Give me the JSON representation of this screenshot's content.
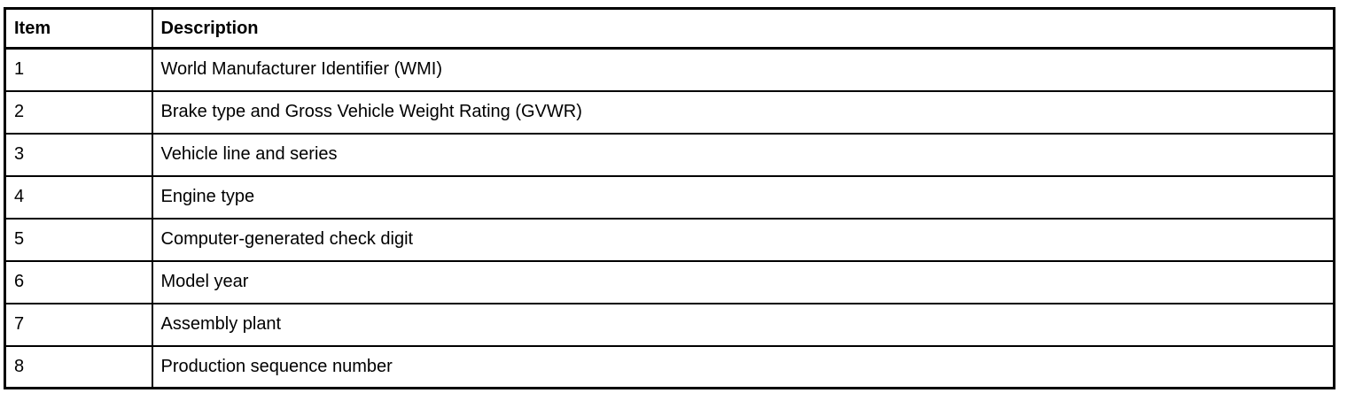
{
  "table": {
    "columns": [
      "Item",
      "Description"
    ],
    "rows": [
      {
        "item": "1",
        "description": "World Manufacturer Identifier (WMI)"
      },
      {
        "item": "2",
        "description": "Brake type and Gross Vehicle Weight Rating (GVWR)"
      },
      {
        "item": "3",
        "description": "Vehicle line and series"
      },
      {
        "item": "4",
        "description": "Engine type"
      },
      {
        "item": "5",
        "description": "Computer-generated check digit"
      },
      {
        "item": "6",
        "description": "Model year"
      },
      {
        "item": "7",
        "description": "Assembly plant"
      },
      {
        "item": "8",
        "description": "Production sequence number"
      }
    ]
  },
  "colors": {
    "border": "#000000",
    "text": "#000000",
    "background": "#ffffff"
  }
}
